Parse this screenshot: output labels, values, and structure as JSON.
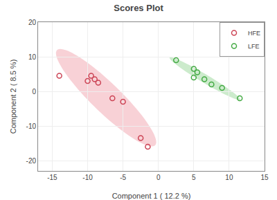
{
  "chart_data": {
    "type": "scatter",
    "title": "Scores Plot",
    "xlabel": "Component 1 ( 12.2 %)",
    "ylabel": "Component 2 ( 8.5 %)",
    "xlim": [
      -17,
      15
    ],
    "ylim": [
      -23,
      20
    ],
    "xticks": [
      -15,
      -10,
      -5,
      0,
      5,
      10,
      15
    ],
    "yticks": [
      -20,
      -10,
      0,
      10,
      20
    ],
    "grid": true,
    "legend": "upper right",
    "series": [
      {
        "name": "HFE",
        "color": "#cc4455",
        "marker": "circle-open",
        "x": [
          -14.0,
          -10.0,
          -9.5,
          -9.0,
          -8.5,
          -6.5,
          -5.0,
          -2.5,
          -1.5
        ],
        "y": [
          4.5,
          3.0,
          4.5,
          3.5,
          2.5,
          -2.0,
          -3.0,
          -13.5,
          -16.0
        ],
        "ellipse": {
          "center": [
            -7.3889,
            -1.8333
          ],
          "width": 31.071,
          "height": 5.2423,
          "angle": -64.55,
          "color": "#f5b8c0"
        }
      },
      {
        "name": "LFE",
        "color": "#44aa44",
        "marker": "circle-open",
        "x": [
          2.5,
          5.0,
          5.5,
          5.0,
          6.5,
          7.5,
          9.0,
          11.5
        ],
        "y": [
          9.0,
          6.5,
          5.5,
          4.0,
          3.5,
          2.0,
          1.0,
          -2.0
        ],
        "ellipse": {
          "center": [
            6.5625,
            3.6875
          ],
          "width": 15.7488,
          "height": 1.7864,
          "angle": -51.17,
          "color": "#b0e0b0"
        }
      }
    ]
  }
}
